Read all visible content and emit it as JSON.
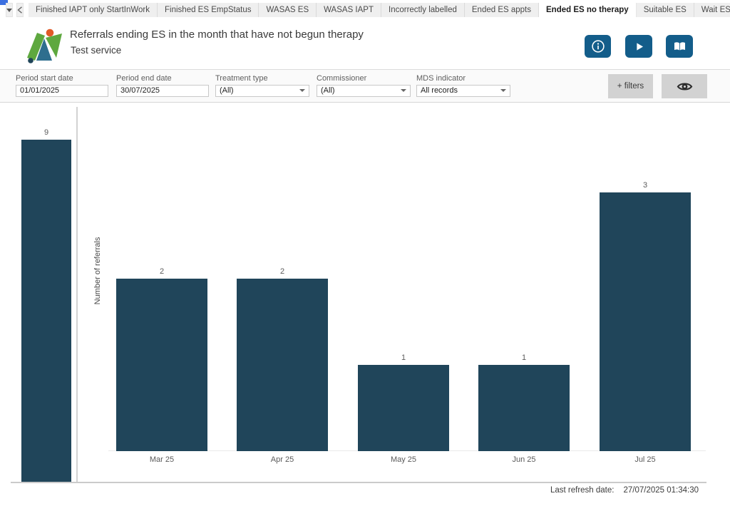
{
  "tab_bar": {
    "tabs": [
      {
        "label": "Finished IAPT only StartInWork",
        "active": false
      },
      {
        "label": "Finished ES EmpStatus",
        "active": false
      },
      {
        "label": "WASAS ES",
        "active": false
      },
      {
        "label": "WASAS IAPT",
        "active": false
      },
      {
        "label": "Incorrectly labelled",
        "active": false
      },
      {
        "label": "Ended ES appts",
        "active": false
      },
      {
        "label": "Ended ES no therapy",
        "active": true
      },
      {
        "label": "Suitable ES",
        "active": false
      },
      {
        "label": "Wait ES",
        "active": false
      }
    ]
  },
  "header": {
    "title": "Referrals ending ES in the month that have not begun therapy",
    "subtitle": "Test service"
  },
  "filters": {
    "period_start": {
      "label": "Period start date",
      "value": "01/01/2025"
    },
    "period_end": {
      "label": "Period end date",
      "value": "30/07/2025"
    },
    "treatment_type": {
      "label": "Treatment type",
      "value": "(All)"
    },
    "commissioner": {
      "label": "Commissioner",
      "value": "(All)"
    },
    "mds_indicator": {
      "label": "MDS indicator",
      "value": "All records"
    },
    "add_filters_label": "+ filters"
  },
  "chart_data": {
    "type": "bar",
    "ylabel": "Number of referrals",
    "categories": [
      "Mar 25",
      "Apr 25",
      "May 25",
      "Jun 25",
      "Jul 25"
    ],
    "values": [
      2,
      2,
      1,
      1,
      3
    ],
    "partial_left_bar": {
      "value": 9
    },
    "bar_color": "#20455a",
    "ylim": [
      0,
      4
    ],
    "grid": false,
    "legend": false
  },
  "footer": {
    "refresh_label": "Last refresh date:",
    "refresh_value": "27/07/2025 01:34:30"
  },
  "colors": {
    "accent_blue": "#135d8a",
    "bar": "#20455a",
    "logo_green": "#5ea83f",
    "logo_teal": "#2e6e8e",
    "logo_orange": "#e05a28"
  }
}
